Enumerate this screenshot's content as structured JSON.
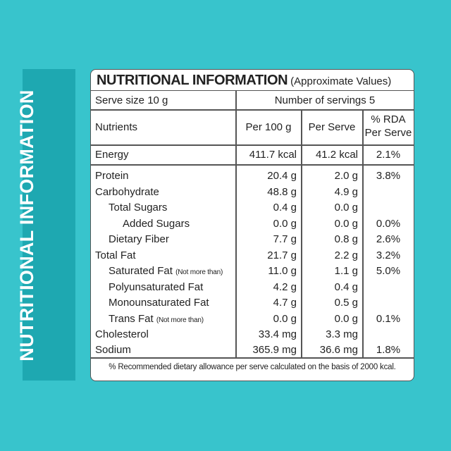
{
  "side_label": "NUTRITIONAL INFORMATION",
  "header": {
    "title": "NUTRITIONAL INFORMATION",
    "subtitle": "(Approximate Values)"
  },
  "serve_size": "Serve size 10 g",
  "servings": "Number of servings 5",
  "columns": {
    "nutrients": "Nutrients",
    "per100": "Per 100 g",
    "perserve": "Per Serve",
    "rda_line1": "% RDA",
    "rda_line2": "Per Serve"
  },
  "energy": {
    "name": "Energy",
    "per100": "411.7 kcal",
    "perserve": "41.2 kcal",
    "rda": "2.1%"
  },
  "rows": [
    {
      "name": "Protein",
      "note": "",
      "per100": "20.4 g",
      "perserve": "2.0 g",
      "rda": "3.8%"
    },
    {
      "name": "Carbohydrate",
      "note": "",
      "per100": "48.8 g",
      "perserve": "4.9 g",
      "rda": ""
    },
    {
      "name": "Total Sugars",
      "note": "",
      "per100": "0.4 g",
      "perserve": "0.0 g",
      "rda": ""
    },
    {
      "name": "Added Sugars",
      "note": "",
      "per100": "0.0 g",
      "perserve": "0.0 g",
      "rda": "0.0%"
    },
    {
      "name": "Dietary Fiber",
      "note": "",
      "per100": "7.7 g",
      "perserve": "0.8 g",
      "rda": "2.6%"
    },
    {
      "name": "Total Fat",
      "note": "",
      "per100": "21.7 g",
      "perserve": "2.2 g",
      "rda": "3.2%"
    },
    {
      "name": "Saturated Fat",
      "note": "(Not more than)",
      "per100": "11.0 g",
      "perserve": "1.1 g",
      "rda": "5.0%"
    },
    {
      "name": "Polyunsaturated Fat",
      "note": "",
      "per100": "4.2 g",
      "perserve": "0.4 g",
      "rda": ""
    },
    {
      "name": "Monounsaturated Fat",
      "note": "",
      "per100": "4.7 g",
      "perserve": "0.5 g",
      "rda": ""
    },
    {
      "name": "Trans Fat",
      "note": "(Not more than)",
      "per100": "0.0 g",
      "perserve": "0.0 g",
      "rda": "0.1%"
    },
    {
      "name": "Cholesterol",
      "note": "",
      "per100": "33.4 mg",
      "perserve": "3.3 mg",
      "rda": ""
    },
    {
      "name": "Sodium",
      "note": "",
      "per100": "365.9 mg",
      "perserve": "36.6 mg",
      "rda": "1.8%"
    }
  ],
  "footnote": "% Recommended dietary allowance per serve calculated on the basis of 2000 kcal.",
  "colors": {
    "background": "#38c4cc",
    "side_band": "#1ea8b1",
    "panel": "#ffffff",
    "text": "#222222"
  }
}
